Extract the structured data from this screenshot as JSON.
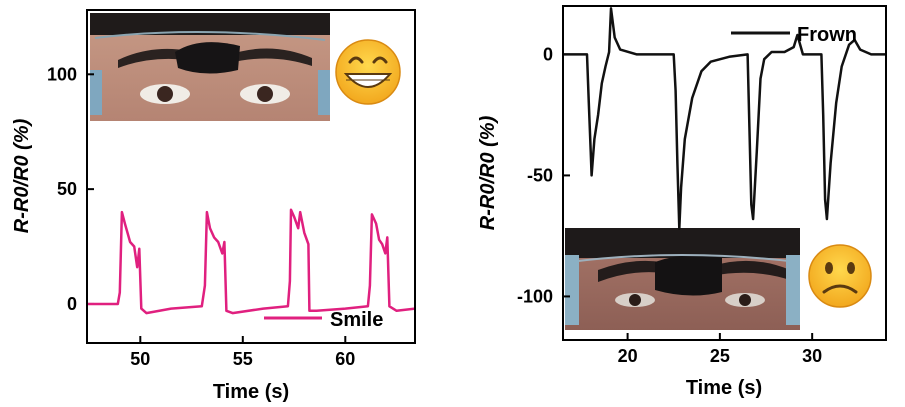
{
  "chart_data": [
    {
      "type": "line",
      "xlabel": "Time (s)",
      "ylabel": "R-R0/R0 (%)",
      "xlim": [
        47.4,
        63.4
      ],
      "ylim": [
        -17,
        128
      ],
      "xticks": [
        50,
        55,
        60
      ],
      "yticks": [
        0,
        50,
        100
      ],
      "legend": {
        "position": "bottom-right",
        "entries": [
          "Smile"
        ]
      },
      "emoji": "😁",
      "photo_caption": "",
      "series": [
        {
          "name": "Smile",
          "color": "#e0207f",
          "points": [
            [
              47.4,
              0
            ],
            [
              48.9,
              0
            ],
            [
              49.0,
              5
            ],
            [
              49.1,
              40
            ],
            [
              49.25,
              35
            ],
            [
              49.5,
              27
            ],
            [
              49.7,
              25
            ],
            [
              49.85,
              16
            ],
            [
              49.95,
              24
            ],
            [
              50.05,
              -2
            ],
            [
              50.3,
              -4
            ],
            [
              51.5,
              -2
            ],
            [
              53.0,
              -1
            ],
            [
              53.15,
              8
            ],
            [
              53.25,
              40
            ],
            [
              53.4,
              33
            ],
            [
              53.6,
              29
            ],
            [
              53.8,
              27
            ],
            [
              54.0,
              22
            ],
            [
              54.1,
              27
            ],
            [
              54.2,
              -3
            ],
            [
              54.5,
              -4
            ],
            [
              56.0,
              -2
            ],
            [
              57.2,
              -1
            ],
            [
              57.3,
              10
            ],
            [
              57.35,
              41
            ],
            [
              57.5,
              38
            ],
            [
              57.7,
              33
            ],
            [
              57.8,
              40
            ],
            [
              58.0,
              31
            ],
            [
              58.2,
              26
            ],
            [
              58.25,
              -3
            ],
            [
              58.6,
              -3
            ],
            [
              60.0,
              -2
            ],
            [
              61.1,
              -1
            ],
            [
              61.2,
              8
            ],
            [
              61.3,
              39
            ],
            [
              61.5,
              35
            ],
            [
              61.65,
              28
            ],
            [
              61.8,
              26
            ],
            [
              61.95,
              22
            ],
            [
              62.05,
              29
            ],
            [
              62.15,
              -1
            ],
            [
              62.5,
              -3
            ],
            [
              63.4,
              -2
            ]
          ]
        }
      ]
    },
    {
      "type": "line",
      "xlabel": "Time (s)",
      "ylabel": "R-R0/R0 (%)",
      "xlim": [
        16.5,
        34.0
      ],
      "ylim": [
        -118,
        20
      ],
      "xticks": [
        20,
        25,
        30
      ],
      "yticks": [
        0,
        -50,
        -100
      ],
      "legend": {
        "position": "top-right",
        "entries": [
          "Frown"
        ]
      },
      "emoji": "☹",
      "photo_caption": "",
      "series": [
        {
          "name": "Frown",
          "color": "#111111",
          "points": [
            [
              16.5,
              0
            ],
            [
              17.8,
              0
            ],
            [
              17.9,
              -20
            ],
            [
              18.0,
              -40
            ],
            [
              18.05,
              -50
            ],
            [
              18.2,
              -35
            ],
            [
              18.4,
              -25
            ],
            [
              18.6,
              -12
            ],
            [
              18.8,
              -5
            ],
            [
              19.0,
              1
            ],
            [
              19.1,
              19
            ],
            [
              19.3,
              7
            ],
            [
              19.6,
              2
            ],
            [
              20.5,
              0
            ],
            [
              22.5,
              0
            ],
            [
              22.6,
              -15
            ],
            [
              22.7,
              -45
            ],
            [
              22.8,
              -72
            ],
            [
              22.9,
              -55
            ],
            [
              23.1,
              -35
            ],
            [
              23.5,
              -18
            ],
            [
              24.0,
              -7
            ],
            [
              24.5,
              -3
            ],
            [
              25.5,
              -1
            ],
            [
              26.5,
              0
            ],
            [
              26.6,
              -30
            ],
            [
              26.7,
              -62
            ],
            [
              26.8,
              -68
            ],
            [
              27.0,
              -40
            ],
            [
              27.2,
              -10
            ],
            [
              27.4,
              -2
            ],
            [
              27.8,
              1
            ],
            [
              28.5,
              1
            ],
            [
              29.0,
              3
            ],
            [
              29.2,
              8
            ],
            [
              29.5,
              0
            ],
            [
              30.5,
              0
            ],
            [
              30.6,
              -25
            ],
            [
              30.7,
              -60
            ],
            [
              30.8,
              -68
            ],
            [
              31.0,
              -45
            ],
            [
              31.3,
              -20
            ],
            [
              31.6,
              -5
            ],
            [
              32.0,
              4
            ],
            [
              32.3,
              6
            ],
            [
              32.6,
              2
            ],
            [
              33.2,
              0
            ],
            [
              34.0,
              0
            ]
          ]
        }
      ]
    }
  ]
}
